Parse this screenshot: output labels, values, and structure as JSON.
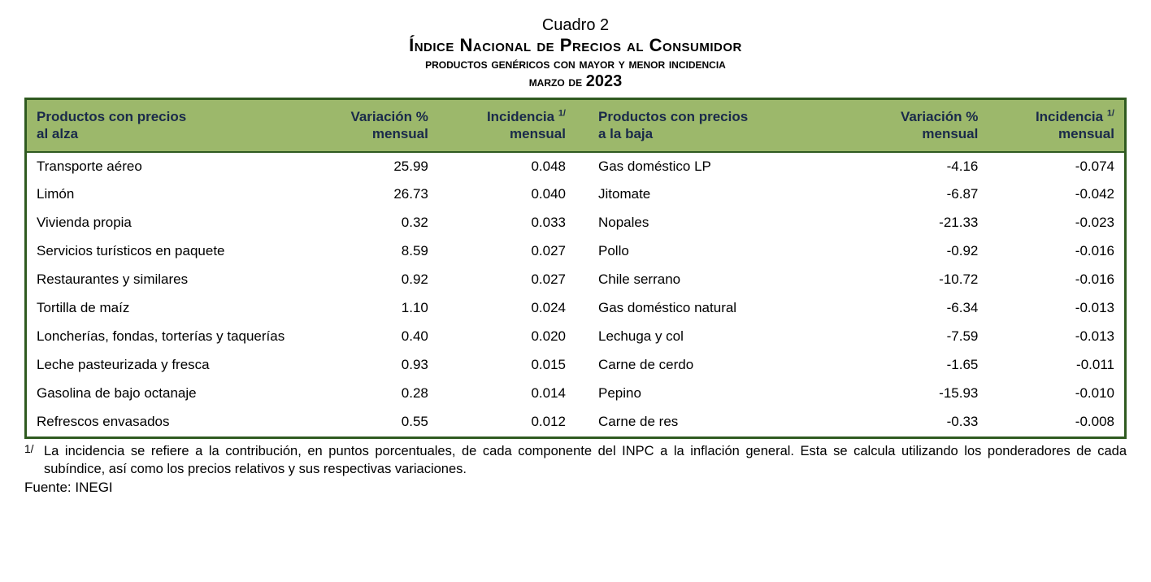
{
  "title": {
    "line1": "Cuadro 2",
    "line2": "Índice Nacional de Precios al Consumidor",
    "line3": "productos genéricos con mayor y menor incidencia",
    "line4_pre": "marzo de ",
    "line4_year": "2023"
  },
  "headers": {
    "prod_up_l1": "Productos con precios",
    "prod_up_l2": "al alza",
    "var_l1": "Variación %",
    "var_l2": "mensual",
    "inc_l1_pre": "Incidencia ",
    "inc_sup": "1/",
    "inc_l2": "mensual",
    "prod_down_l1": "Productos con precios",
    "prod_down_l2": "a la baja"
  },
  "rows": [
    {
      "up_name": "Transporte aéreo",
      "up_var": "25.99",
      "up_inc": "0.048",
      "down_name": "Gas doméstico LP",
      "down_var": "-4.16",
      "down_inc": "-0.074"
    },
    {
      "up_name": "Limón",
      "up_var": "26.73",
      "up_inc": "0.040",
      "down_name": "Jitomate",
      "down_var": "-6.87",
      "down_inc": "-0.042"
    },
    {
      "up_name": "Vivienda propia",
      "up_var": "0.32",
      "up_inc": "0.033",
      "down_name": "Nopales",
      "down_var": "-21.33",
      "down_inc": "-0.023"
    },
    {
      "up_name": "Servicios turísticos en paquete",
      "up_var": "8.59",
      "up_inc": "0.027",
      "down_name": "Pollo",
      "down_var": "-0.92",
      "down_inc": "-0.016"
    },
    {
      "up_name": "Restaurantes y similares",
      "up_var": "0.92",
      "up_inc": "0.027",
      "down_name": "Chile serrano",
      "down_var": "-10.72",
      "down_inc": "-0.016"
    },
    {
      "up_name": "Tortilla de maíz",
      "up_var": "1.10",
      "up_inc": "0.024",
      "down_name": "Gas doméstico natural",
      "down_var": "-6.34",
      "down_inc": "-0.013"
    },
    {
      "up_name": "Loncherías, fondas, torterías y taquerías",
      "up_var": "0.40",
      "up_inc": "0.020",
      "down_name": "Lechuga y col",
      "down_var": "-7.59",
      "down_inc": "-0.013"
    },
    {
      "up_name": "Leche pasteurizada y fresca",
      "up_var": "0.93",
      "up_inc": "0.015",
      "down_name": "Carne de cerdo",
      "down_var": "-1.65",
      "down_inc": "-0.011"
    },
    {
      "up_name": "Gasolina de bajo octanaje",
      "up_var": "0.28",
      "up_inc": "0.014",
      "down_name": "Pepino",
      "down_var": "-15.93",
      "down_inc": "-0.010"
    },
    {
      "up_name": "Refrescos envasados",
      "up_var": "0.55",
      "up_inc": "0.012",
      "down_name": "Carne de res",
      "down_var": "-0.33",
      "down_inc": "-0.008"
    }
  ],
  "footnote": {
    "marker": "1/",
    "text": "La incidencia se refiere a la contribución, en puntos porcentuales, de cada componente del INPC a la inflación general. Esta se calcula utilizando los ponderadores de cada subíndice, así como los precios relativos y sus respectivas variaciones."
  },
  "source": "Fuente: INEGI",
  "style": {
    "header_bg": "#9cb86b",
    "header_text": "#1a2a4a",
    "border_color": "#2f5a20",
    "body_bg": "#ffffff",
    "body_text": "#000000"
  }
}
